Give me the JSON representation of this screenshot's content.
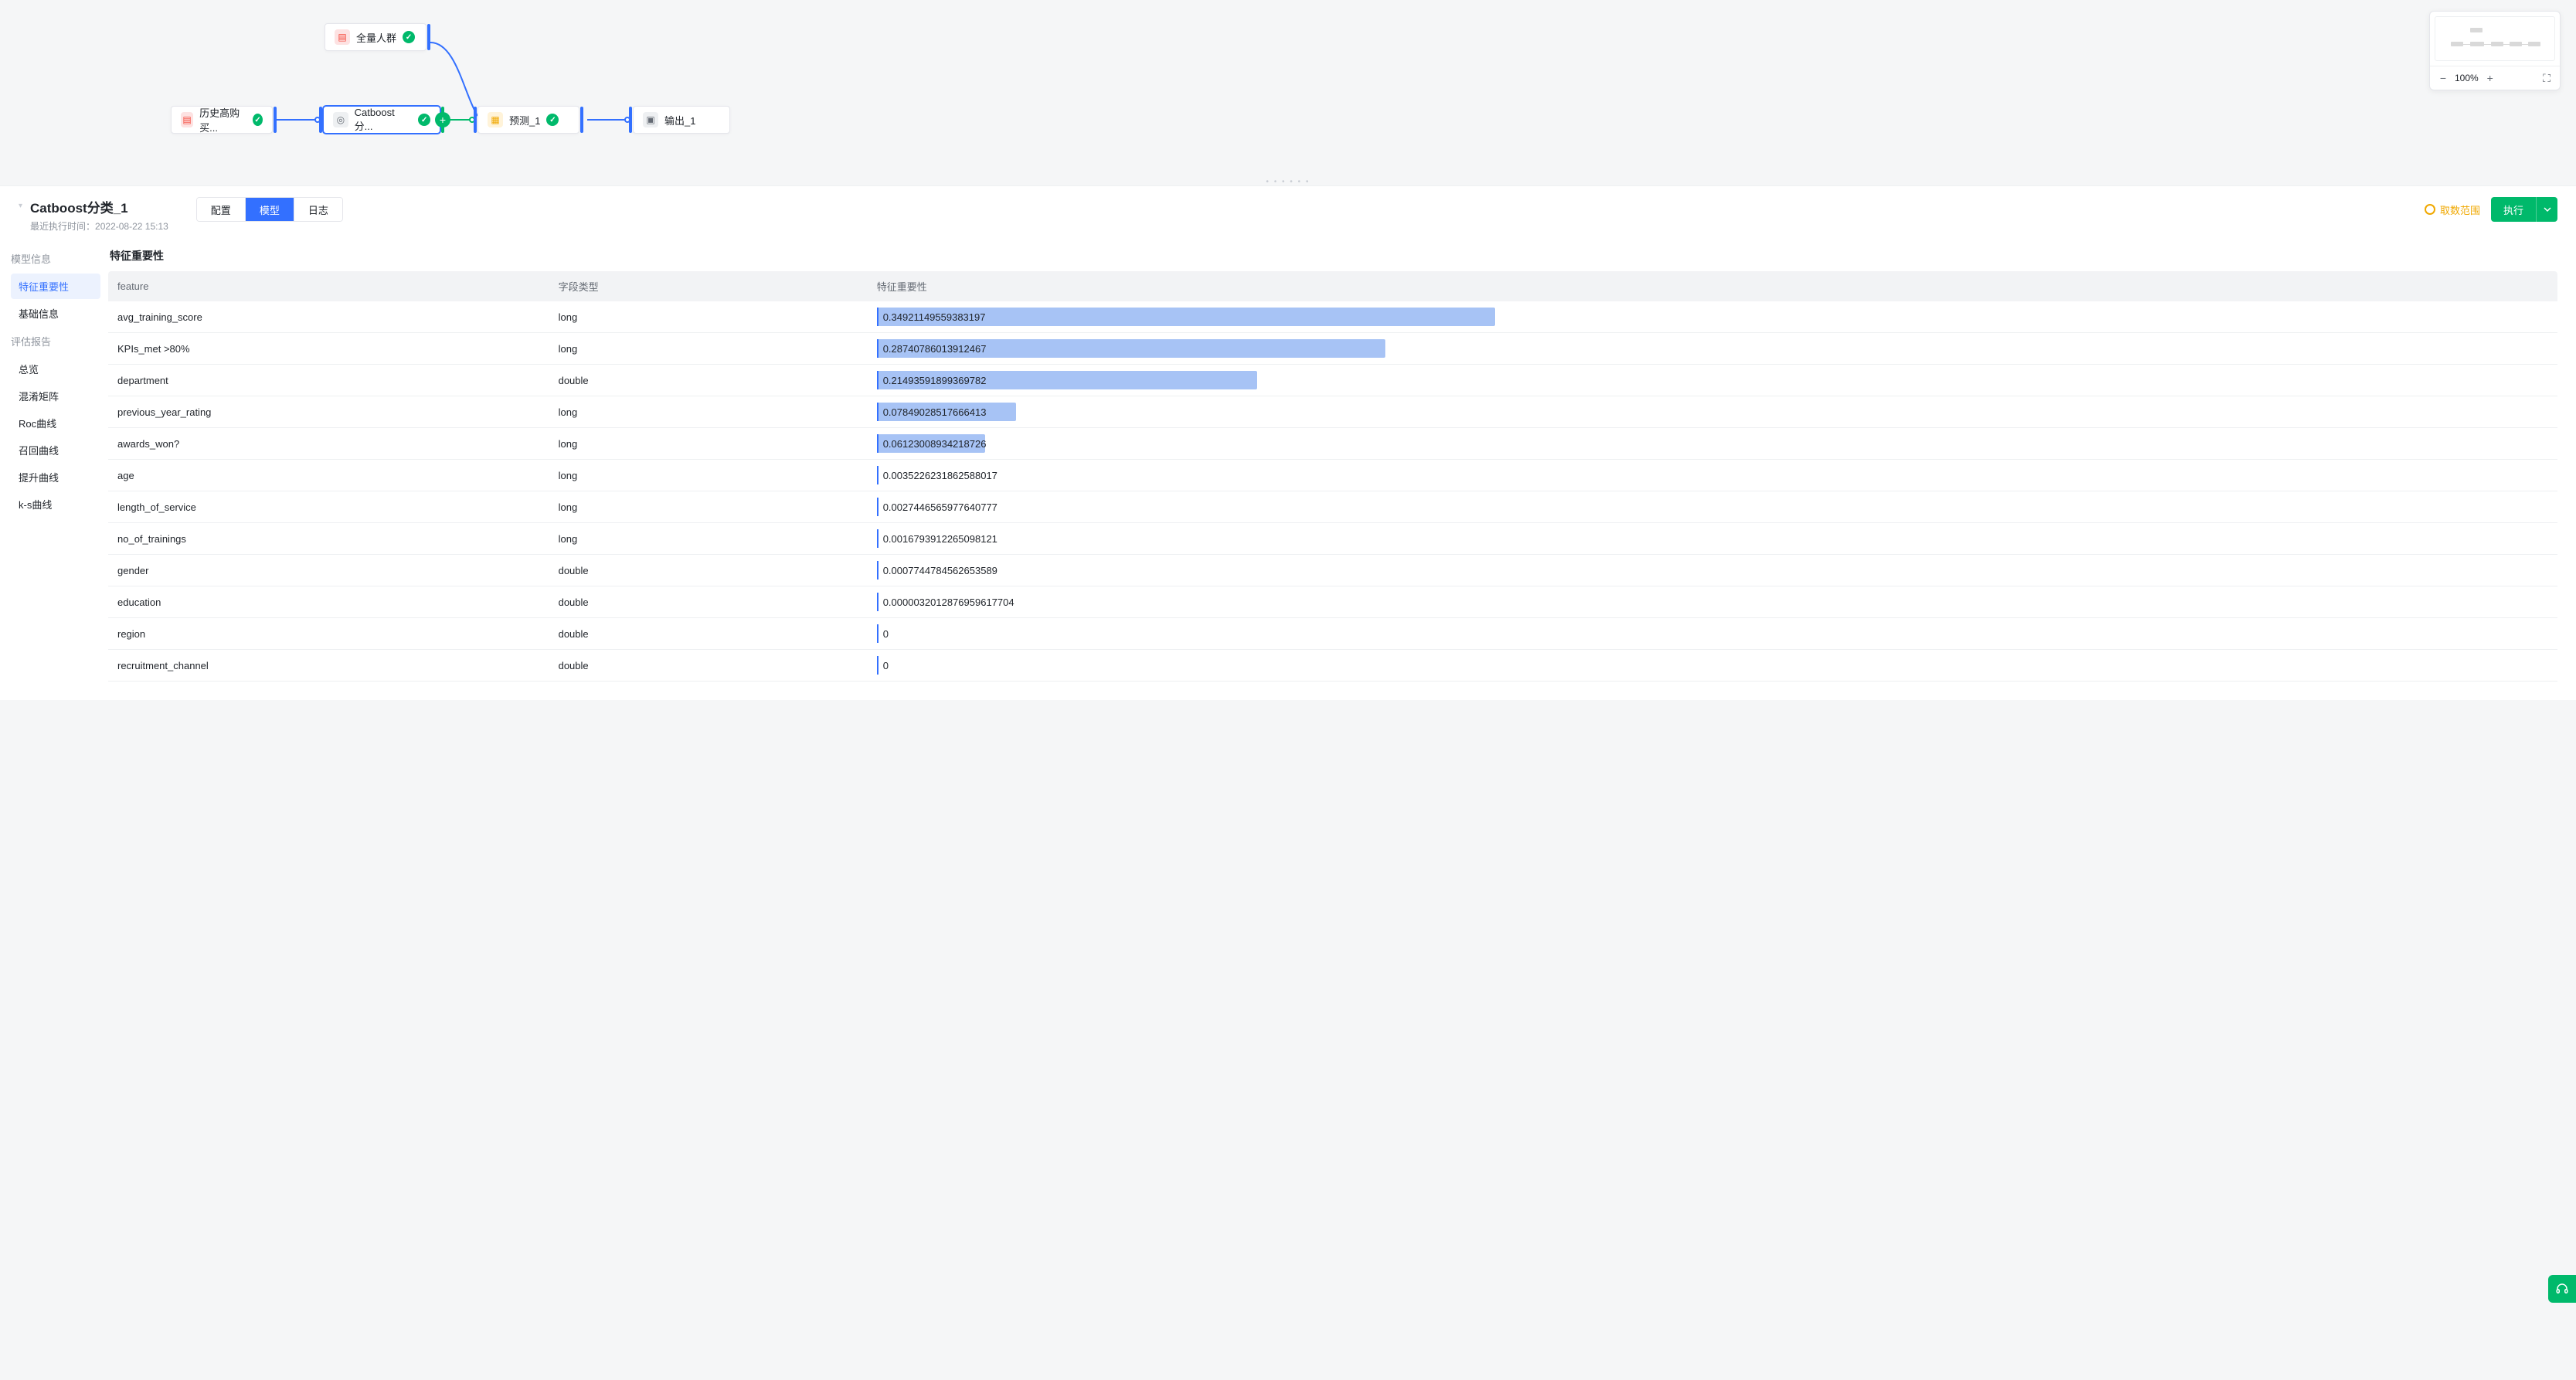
{
  "canvas": {
    "nodes": {
      "source_all": "全量人群",
      "source_history": "历史高购买...",
      "catboost": "Catboost分...",
      "predict": "预测_1",
      "output": "输出_1"
    },
    "minimap_zoom": "100%"
  },
  "panel": {
    "title": "Catboost分类_1",
    "subtitle_prefix": "最近执行时间：",
    "subtitle_time": "2022-08-22 15:13",
    "tabs": {
      "config": "配置",
      "model": "模型",
      "log": "日志"
    },
    "range_hint": "取数范围",
    "run_label": "执行"
  },
  "sidenav": {
    "group_model": "模型信息",
    "items_model": {
      "feat_imp": "特征重要性",
      "basic": "基础信息"
    },
    "group_eval": "评估报告",
    "items_eval": {
      "overview": "总览",
      "confusion": "混淆矩阵",
      "roc": "Roc曲线",
      "recall": "召回曲线",
      "lift": "提升曲线",
      "ks": "k-s曲线"
    }
  },
  "content": {
    "title": "特征重要性",
    "columns": {
      "feature": "feature",
      "type": "字段类型",
      "importance": "特征重要性"
    },
    "bar_color": "#a7c3f5",
    "bar_border": "#3370ff",
    "max_value": 0.34921149559383197,
    "rows": [
      {
        "feature": "avg_training_score",
        "type": "long",
        "value": 0.34921149559383197,
        "label": "0.34921149559383197"
      },
      {
        "feature": "KPIs_met >80%",
        "type": "long",
        "value": 0.28740786013912467,
        "label": "0.28740786013912467"
      },
      {
        "feature": "department",
        "type": "double",
        "value": 0.21493591899369782,
        "label": "0.21493591899369782"
      },
      {
        "feature": "previous_year_rating",
        "type": "long",
        "value": 0.07849028517666413,
        "label": "0.07849028517666413"
      },
      {
        "feature": "awards_won?",
        "type": "long",
        "value": 0.06123008934218726,
        "label": "0.06123008934218726"
      },
      {
        "feature": "age",
        "type": "long",
        "value": 0.0035226231862588017,
        "label": "0.0035226231862588017"
      },
      {
        "feature": "length_of_service",
        "type": "long",
        "value": 0.0027446565977640777,
        "label": "0.0027446565977640777"
      },
      {
        "feature": "no_of_trainings",
        "type": "long",
        "value": 0.0016793912265098121,
        "label": "0.0016793912265098121"
      },
      {
        "feature": "gender",
        "type": "double",
        "value": 0.0007744784562653589,
        "label": "0.0007744784562653589"
      },
      {
        "feature": "education",
        "type": "double",
        "value": 3.2012876959617704e-06,
        "label": "0.0000032012876959617704"
      },
      {
        "feature": "region",
        "type": "double",
        "value": 0,
        "label": "0"
      },
      {
        "feature": "recruitment_channel",
        "type": "double",
        "value": 0,
        "label": "0"
      }
    ]
  }
}
